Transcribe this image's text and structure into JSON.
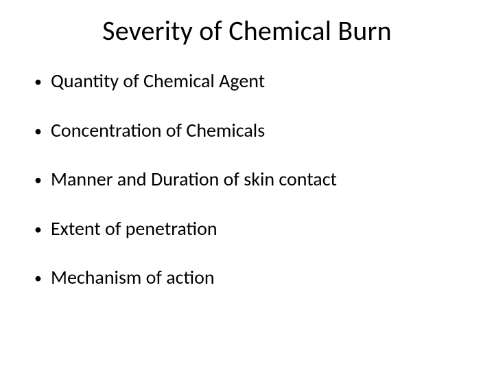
{
  "slide": {
    "background_color": "#ffffff",
    "text_color": "#000000",
    "title": "Severity of Chemical Burn",
    "title_fontsize": 40,
    "bullet_fontsize": 28,
    "font_family": "Calibri",
    "bullets": [
      "Quantity of Chemical Agent",
      "Concentration of Chemicals",
      "Manner and Duration of skin contact",
      "Extent of penetration",
      "Mechanism of action"
    ]
  }
}
